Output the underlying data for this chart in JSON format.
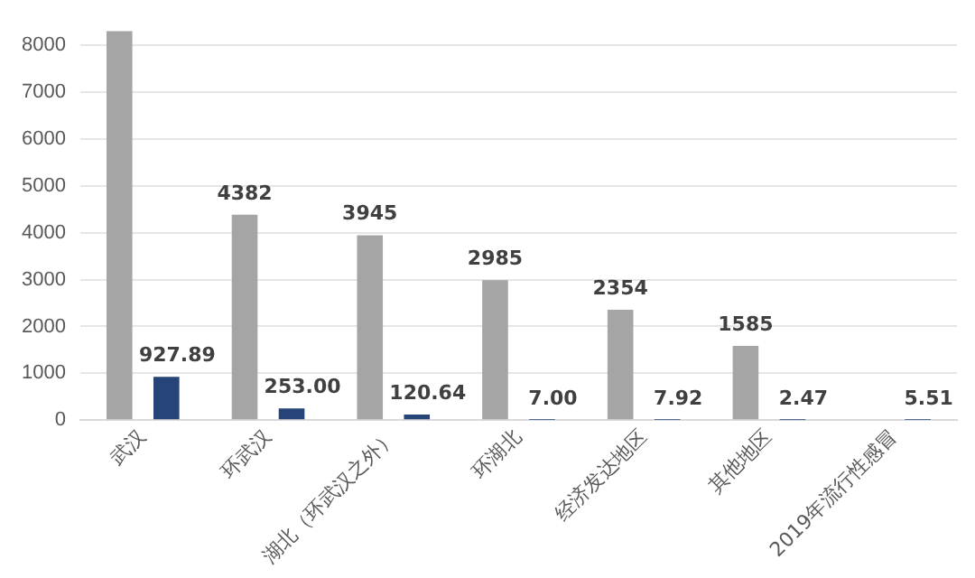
{
  "chart_data": {
    "type": "bar",
    "categories": [
      "武汉",
      "环武汉",
      "湖北（环武汉之外）",
      "环湖北",
      "经济发达地区",
      "其他地区",
      "2019年流行性感冒"
    ],
    "series": [
      {
        "color": "#a5a5a5",
        "values": [
          8300,
          4382,
          3945,
          2985,
          2354,
          1585,
          null
        ],
        "value_labels": [
          null,
          "4382",
          "3945",
          "2985",
          "2354",
          "1585",
          null
        ]
      },
      {
        "color": "#264478",
        "values": [
          927.89,
          253.0,
          120.64,
          7.0,
          7.92,
          2.47,
          5.51
        ],
        "value_labels": [
          "927.89",
          "253.00",
          "120.64",
          "7.00",
          "7.92",
          "2.47",
          "5.51"
        ]
      }
    ],
    "ylim": [
      0,
      8400
    ],
    "yticks": [
      0,
      1000,
      2000,
      3000,
      4000,
      5000,
      6000,
      7000,
      8000
    ],
    "grid": "y",
    "legend": false
  }
}
